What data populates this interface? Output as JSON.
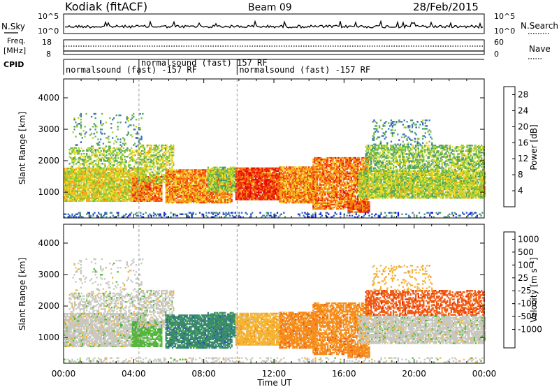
{
  "header": {
    "station": "Kodiak (fitACF)",
    "beam": "Beam 09",
    "date": "28/Feb/2015"
  },
  "strips": {
    "nsky_label": "N.Sky",
    "nsky_ticks": [
      "10^5",
      "10^0"
    ],
    "nsearch_label": "N.Search",
    "nsearch_ticks": [
      "10^5",
      "10^0"
    ],
    "freq_label": "Freq.",
    "freq_unit": "[MHz]",
    "freq_ticks": [
      "18",
      "8"
    ],
    "nave_label": "Nave",
    "nave_ticks": [
      "60",
      "0"
    ],
    "cpid_label": "CPID",
    "cpid_segments": [
      {
        "label": "normalsound (fast) -157 RF",
        "start_h": 0,
        "end_h": 4.3
      },
      {
        "label": "normalsound (fast) 157 RF",
        "start_h": 4.3,
        "end_h": 9.9
      },
      {
        "label": "normalsound (fast) -157 RF",
        "start_h": 9.9,
        "end_h": 24
      }
    ]
  },
  "chart_data": [
    {
      "type": "heatmap",
      "name": "power",
      "ylabel": "Slant Range [km]",
      "xlabel": "",
      "xlim": [
        0,
        24
      ],
      "ylim": [
        180,
        4600
      ],
      "yticks": [
        "1000",
        "2000",
        "3000",
        "4000"
      ],
      "colorbar_label": "Power [dB]",
      "colorbar_ticks": [
        "4",
        "8",
        "12",
        "16",
        "20",
        "24",
        "28"
      ],
      "colorbar_range": [
        0,
        30
      ],
      "colorbar_colors": [
        "#1414e6",
        "#2850c8",
        "#3a7ab4",
        "#4a9a72",
        "#72be3c",
        "#b4d232",
        "#f0dc28",
        "#f5aa1e",
        "#f57814",
        "#f03c0a",
        "#e60a0a"
      ]
    },
    {
      "type": "heatmap",
      "name": "velocity",
      "ylabel": "Slant Range [km]",
      "xlabel": "Time UT",
      "xlim": [
        0,
        24
      ],
      "ylim": [
        180,
        4600
      ],
      "yticks": [
        "1000",
        "2000",
        "3000",
        "4000"
      ],
      "xticks": [
        "00:00",
        "04:00",
        "08:00",
        "12:00",
        "16:00",
        "20:00",
        "00:00"
      ],
      "colorbar_label": "Velocity [m s⁻¹]",
      "colorbar_ticks": [
        "1000",
        "500",
        "100",
        "25",
        "-25",
        "-100",
        "-500",
        "-1000"
      ],
      "colorbar_colors": [
        "#2832b4",
        "#2a5aa8",
        "#3a8a6e",
        "#52b83a",
        "#c8c8c0",
        "#f5b432",
        "#f58c1e",
        "#f05a14",
        "#e61e0a"
      ]
    }
  ]
}
